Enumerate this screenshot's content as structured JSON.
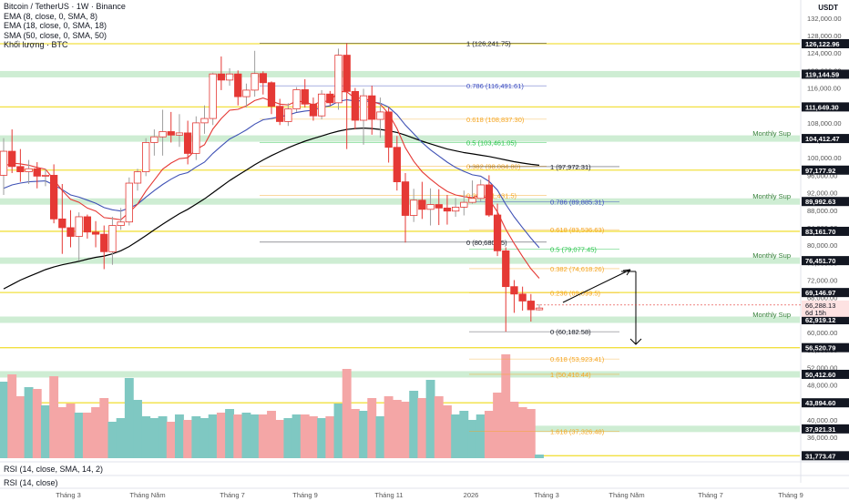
{
  "legend": {
    "title": "Bitcoin / TetherUS · 1W · Binance",
    "ema8": "EMA (8, close, 0, SMA, 8)",
    "ema18": "EMA (18, close, 0, SMA, 18)",
    "sma50": "SMA (50, close, 0, SMA, 50)",
    "volume": "Khối lượng · BTC"
  },
  "rsi": {
    "label1": "RSI (14, close, SMA, 14, 2)",
    "label2": "RSI (14, close)"
  },
  "chart_data": {
    "type": "candlestick",
    "currency": "USDT",
    "ylim": [
      20000,
      136000
    ],
    "y_ticks": [
      132000,
      128000,
      124000,
      120000,
      116000,
      112000,
      108000,
      104000,
      100000,
      96000,
      92000,
      88000,
      84000,
      80000,
      76000,
      72000,
      68000,
      64000,
      60000,
      56000,
      52000,
      48000,
      44000,
      40000,
      36000,
      32000
    ],
    "x_labels": [
      "Tháng 3",
      "Tháng Năm",
      "Tháng 7",
      "Tháng 9",
      "Tháng 11",
      "2026",
      "Tháng 3",
      "Tháng Năm",
      "Tháng 7",
      "Tháng 9"
    ],
    "candles": [
      {
        "o": 96000,
        "h": 104500,
        "l": 91500,
        "c": 101500
      },
      {
        "o": 101500,
        "h": 106500,
        "l": 96500,
        "c": 98000
      },
      {
        "o": 98000,
        "h": 102000,
        "l": 94500,
        "c": 96800
      },
      {
        "o": 96800,
        "h": 99500,
        "l": 94000,
        "c": 97500
      },
      {
        "o": 97500,
        "h": 99000,
        "l": 93000,
        "c": 95800
      },
      {
        "o": 95800,
        "h": 97500,
        "l": 93500,
        "c": 96000
      },
      {
        "o": 96000,
        "h": 98500,
        "l": 85000,
        "c": 86000
      },
      {
        "o": 86000,
        "h": 94000,
        "l": 78000,
        "c": 84000
      },
      {
        "o": 84000,
        "h": 88000,
        "l": 79500,
        "c": 82000
      },
      {
        "o": 82000,
        "h": 87500,
        "l": 76500,
        "c": 86500
      },
      {
        "o": 86500,
        "h": 87000,
        "l": 81500,
        "c": 83000
      },
      {
        "o": 83000,
        "h": 85500,
        "l": 79500,
        "c": 82500
      },
      {
        "o": 82500,
        "h": 84500,
        "l": 74500,
        "c": 78500
      },
      {
        "o": 78500,
        "h": 86500,
        "l": 75500,
        "c": 84500
      },
      {
        "o": 84500,
        "h": 88500,
        "l": 83500,
        "c": 85300
      },
      {
        "o": 85300,
        "h": 95500,
        "l": 84500,
        "c": 94200
      },
      {
        "o": 94200,
        "h": 97500,
        "l": 92500,
        "c": 96800
      },
      {
        "o": 96800,
        "h": 104500,
        "l": 95800,
        "c": 103500
      },
      {
        "o": 103500,
        "h": 106500,
        "l": 100500,
        "c": 104800
      },
      {
        "o": 104800,
        "h": 111000,
        "l": 100500,
        "c": 106000
      },
      {
        "o": 106000,
        "h": 110500,
        "l": 103500,
        "c": 105200
      },
      {
        "o": 105200,
        "h": 110000,
        "l": 102500,
        "c": 105700
      },
      {
        "o": 105700,
        "h": 108500,
        "l": 98500,
        "c": 101000
      },
      {
        "o": 101000,
        "h": 109500,
        "l": 99500,
        "c": 108000
      },
      {
        "o": 108000,
        "h": 112000,
        "l": 105500,
        "c": 109000
      },
      {
        "o": 109000,
        "h": 119500,
        "l": 107500,
        "c": 119200
      },
      {
        "o": 119200,
        "h": 123200,
        "l": 115500,
        "c": 117800
      },
      {
        "o": 117800,
        "h": 120500,
        "l": 116500,
        "c": 119200
      },
      {
        "o": 119200,
        "h": 120000,
        "l": 112000,
        "c": 114000
      },
      {
        "o": 114000,
        "h": 117000,
        "l": 111500,
        "c": 115500
      },
      {
        "o": 115500,
        "h": 124500,
        "l": 114000,
        "c": 119300
      },
      {
        "o": 119300,
        "h": 119800,
        "l": 114500,
        "c": 117200
      },
      {
        "o": 117200,
        "h": 117500,
        "l": 110000,
        "c": 111800
      },
      {
        "o": 111800,
        "h": 113500,
        "l": 107500,
        "c": 108300
      },
      {
        "o": 108300,
        "h": 112500,
        "l": 107300,
        "c": 111200
      },
      {
        "o": 111200,
        "h": 116200,
        "l": 110500,
        "c": 115600
      },
      {
        "o": 115600,
        "h": 118000,
        "l": 111500,
        "c": 112300
      },
      {
        "o": 112300,
        "h": 113800,
        "l": 108500,
        "c": 109600
      },
      {
        "o": 109600,
        "h": 115500,
        "l": 108800,
        "c": 114600
      },
      {
        "o": 114600,
        "h": 115300,
        "l": 112000,
        "c": 112600
      },
      {
        "o": 112600,
        "h": 125000,
        "l": 111000,
        "c": 123500
      },
      {
        "o": 123500,
        "h": 126241,
        "l": 102000,
        "c": 115200
      },
      {
        "o": 115200,
        "h": 116000,
        "l": 106500,
        "c": 108600
      },
      {
        "o": 108600,
        "h": 115800,
        "l": 103000,
        "c": 114200
      },
      {
        "o": 114200,
        "h": 116500,
        "l": 105300,
        "c": 108800
      },
      {
        "o": 108800,
        "h": 113800,
        "l": 104600,
        "c": 110500
      },
      {
        "o": 110500,
        "h": 111500,
        "l": 98900,
        "c": 102400
      },
      {
        "o": 102400,
        "h": 105000,
        "l": 92500,
        "c": 94500
      },
      {
        "o": 94500,
        "h": 96500,
        "l": 80600,
        "c": 86800
      },
      {
        "o": 86800,
        "h": 92900,
        "l": 85300,
        "c": 90300
      },
      {
        "o": 90300,
        "h": 94500,
        "l": 86000,
        "c": 88200
      },
      {
        "o": 88200,
        "h": 93000,
        "l": 84500,
        "c": 89300
      },
      {
        "o": 89300,
        "h": 92800,
        "l": 84600,
        "c": 88500
      },
      {
        "o": 88500,
        "h": 91500,
        "l": 84700,
        "c": 87800
      },
      {
        "o": 87800,
        "h": 90800,
        "l": 86500,
        "c": 88700
      },
      {
        "o": 88700,
        "h": 92500,
        "l": 86800,
        "c": 89800
      },
      {
        "o": 89800,
        "h": 94800,
        "l": 89500,
        "c": 90700
      },
      {
        "o": 90700,
        "h": 95000,
        "l": 90000,
        "c": 93800
      },
      {
        "o": 93800,
        "h": 96000,
        "l": 86500,
        "c": 86900
      },
      {
        "o": 86900,
        "h": 89500,
        "l": 77500,
        "c": 78700
      },
      {
        "o": 78700,
        "h": 79500,
        "l": 60182,
        "c": 70500
      },
      {
        "o": 70500,
        "h": 72000,
        "l": 64500,
        "c": 68800
      },
      {
        "o": 68800,
        "h": 70500,
        "l": 65000,
        "c": 67200
      },
      {
        "o": 67200,
        "h": 68800,
        "l": 62500,
        "c": 65200
      },
      {
        "o": 65200,
        "h": 66500,
        "l": 65000,
        "c": 65600
      }
    ],
    "ema8": [
      98000,
      98800,
      98600,
      98300,
      97800,
      97400,
      95000,
      92500,
      90500,
      89800,
      88500,
      87800,
      86300,
      86100,
      85800,
      87500,
      89400,
      92400,
      94900,
      97400,
      98800,
      99800,
      100000,
      101900,
      103000,
      106600,
      109000,
      110900,
      111100,
      111900,
      113100,
      113700,
      113000,
      112300,
      112100,
      113000,
      112800,
      112100,
      113000,
      112900,
      115200,
      115100,
      113600,
      113700,
      112900,
      112300,
      110100,
      106700,
      102300,
      99200,
      96800,
      95100,
      93600,
      92300,
      91500,
      91100,
      90900,
      91500,
      90500,
      87600,
      83600,
      80400,
      77400,
      74600,
      72400
    ],
    "ema18": [
      93000,
      93800,
      94200,
      94500,
      94600,
      94700,
      93800,
      92700,
      91500,
      91000,
      90300,
      89600,
      88600,
      88100,
      87800,
      88500,
      89400,
      91000,
      92500,
      93900,
      95100,
      96100,
      96600,
      97900,
      99000,
      101000,
      102700,
      104300,
      105300,
      106400,
      107700,
      108700,
      109000,
      109400,
      109800,
      110400,
      110700,
      110900,
      111600,
      111900,
      112900,
      113300,
      113000,
      113100,
      112800,
      112500,
      111600,
      109900,
      107500,
      105500,
      103500,
      101800,
      100400,
      99000,
      97800,
      96900,
      96100,
      95800,
      94600,
      92600,
      89300,
      86500,
      84000,
      81600,
      79400
    ],
    "sma50": [
      70000,
      71000,
      72000,
      72800,
      73600,
      74400,
      75000,
      75500,
      75900,
      76300,
      76800,
      77200,
      77500,
      78000,
      78700,
      79700,
      80900,
      82200,
      83500,
      84800,
      86000,
      87200,
      88200,
      89400,
      90600,
      92000,
      93400,
      94800,
      96000,
      97200,
      98400,
      99500,
      100500,
      101400,
      102300,
      103100,
      103800,
      104400,
      105000,
      105600,
      106100,
      106500,
      106700,
      106800,
      106700,
      106500,
      106200,
      105800,
      105200,
      104500,
      103800,
      103200,
      102600,
      102000,
      101600,
      101200,
      100900,
      100600,
      100300,
      99900,
      99500,
      99100,
      98800,
      98500,
      98300
    ],
    "volume": [
      4.2,
      4.6,
      3.4,
      3.9,
      3.8,
      2.9,
      4.5,
      2.8,
      3.0,
      2.5,
      2.5,
      2.8,
      3.3,
      2.0,
      2.2,
      4.4,
      3.2,
      2.3,
      2.2,
      2.3,
      2.0,
      2.4,
      2.1,
      2.3,
      2.2,
      2.4,
      2.5,
      2.7,
      2.4,
      2.5,
      2.4,
      2.4,
      2.6,
      2.1,
      2.2,
      2.4,
      2.4,
      2.3,
      2.2,
      2.3,
      3.0,
      4.9,
      2.7,
      2.6,
      3.3,
      2.3,
      3.4,
      3.2,
      3.1,
      3.7,
      3.3,
      4.3,
      3.4,
      2.9,
      2.4,
      2.6,
      2.1,
      2.4,
      2.6,
      3.6,
      5.7,
      3.1,
      2.8,
      2.7,
      0.2
    ],
    "hlines": [
      {
        "price": 126122.96,
        "label": "126,122.96",
        "color": "#f2e040",
        "badge": "#131722"
      },
      {
        "price": 119144.59,
        "label": "119,144.59",
        "color": "#b9e6c0",
        "badge": "#131722",
        "band": true
      },
      {
        "price": 111649.3,
        "label": "111,649.30",
        "color": "#f2e040",
        "badge": "#131722"
      },
      {
        "price": 104412.47,
        "label": "104,412.47",
        "color": "#b9e6c0",
        "badge": "#131722",
        "band": true,
        "tag": "Monthly Sup"
      },
      {
        "price": 97177.92,
        "label": "97,177.92",
        "color": "#f2e040",
        "badge": "#131722"
      },
      {
        "price": 89992.63,
        "label": "89,992.63",
        "color": "#b9e6c0",
        "badge": "#131722",
        "band": true,
        "tag": "Monthly Sup"
      },
      {
        "price": 83161.7,
        "label": "83,161.70",
        "color": "#f2e040",
        "badge": "#131722"
      },
      {
        "price": 76451.7,
        "label": "76,451.70",
        "color": "#b9e6c0",
        "badge": "#131722",
        "band": true,
        "tag": "Monthly Sup"
      },
      {
        "price": 69146.97,
        "label": "69,146.97",
        "color": "#f2e040",
        "badge": "#131722"
      },
      {
        "price": 62919.12,
        "label": "62,919.12",
        "color": "#b9e6c0",
        "badge": "#131722",
        "band": true,
        "tag": "Monthly Sup"
      },
      {
        "price": 56520.79,
        "label": "56,520.79",
        "color": "#f2e040",
        "badge": "#131722"
      },
      {
        "price": 50412.6,
        "label": "50,412.60",
        "color": "#b9e6c0",
        "badge": "#131722",
        "band": true
      },
      {
        "price": 43894.6,
        "label": "43,894.60",
        "color": "#f2e040",
        "badge": "#131722"
      },
      {
        "price": 37921.31,
        "label": "37,921.31",
        "color": "#b9e6c0",
        "badge": "#131722",
        "band": true
      },
      {
        "price": 31773.47,
        "label": "31,773.47",
        "color": "#f2e040",
        "badge": "#131722"
      }
    ],
    "current_price": {
      "price": 66288.13,
      "label": "66,288.13",
      "countdown": "6d 15h"
    },
    "fib_upper": [
      {
        "price": 126241.75,
        "label": "1 (126,241.75)",
        "color": "#131722"
      },
      {
        "price": 116491.61,
        "label": "0.786 (116,491.61)",
        "color": "#3b4cc0"
      },
      {
        "price": 108837.3,
        "label": "0.618 (108,837.30)",
        "color": "#f5a623"
      },
      {
        "price": 103461.05,
        "label": "0.5 (103,461.05)",
        "color": "#26c44a"
      },
      {
        "price": 98084.8,
        "label": "0.382 (98,084.80)",
        "color": "#f5a623"
      },
      {
        "price": 91431.5,
        "label": "0.236 (91,431.5)",
        "color": "#f5a623"
      },
      {
        "price": 80680.35,
        "label": "0 (80,680.35)",
        "color": "#131722"
      }
    ],
    "fib_lower": [
      {
        "price": 97972.31,
        "label": "1 (97,972.31)",
        "color": "#131722"
      },
      {
        "price": 89885.31,
        "label": "0.786 (89,885.31)",
        "color": "#3b4cc0"
      },
      {
        "price": 83536.63,
        "label": "0.618 (83,536.63)",
        "color": "#f5a623"
      },
      {
        "price": 79077.45,
        "label": "0.5 (79,077.45)",
        "color": "#26c44a"
      },
      {
        "price": 74618.26,
        "label": "0.382 (74,618.26)",
        "color": "#f5a623"
      },
      {
        "price": 69099.5,
        "label": "0.236 (69,099.5)",
        "color": "#f5a623"
      },
      {
        "price": 60182.58,
        "label": "0 (60,182.58)",
        "color": "#131722"
      },
      {
        "price": 53923.41,
        "label": "0.618 (53,923.41)",
        "color": "#f5a623"
      },
      {
        "price": 50410.44,
        "label": "1 (50,410.44)",
        "color": "#f5a623"
      },
      {
        "price": 37326.48,
        "label": "1.618 (37,326.48)",
        "color": "#f5a623"
      }
    ]
  },
  "colors": {
    "up": "#ef9a9a",
    "down": "#e53935",
    "up_vol": "#7fc8c2",
    "down_vol": "#f4a6a6",
    "ema8": "#e53935",
    "ema18": "#3f51b5",
    "sma50": "#000000"
  }
}
